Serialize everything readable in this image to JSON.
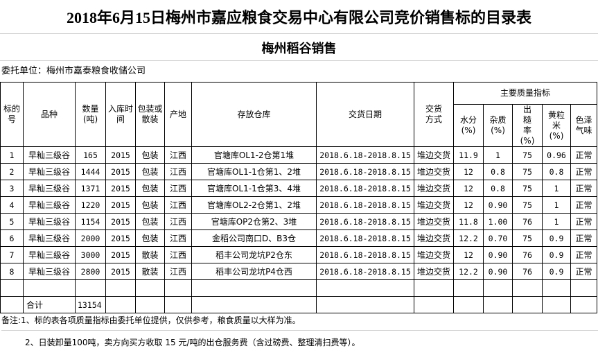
{
  "title": "2018年6月15日梅州市嘉应粮食交易中心有限公司竞价销售标的目录表",
  "subtitle": "梅州稻谷销售",
  "consignor": "委托单位：梅州市嘉泰粮食收储公司",
  "headers": {
    "lot_no": "标的号",
    "variety": "品种",
    "quantity": "数量(吨)",
    "storage_year": "入库时间",
    "packing": "包装或散装",
    "origin": "产地",
    "warehouse": "存放仓库",
    "delivery_date": "交货日期",
    "delivery_method": "交货方式",
    "quality_group": "主要质量指标",
    "moisture": "水分(%)",
    "impurity": "杂质(%)",
    "milling_rate": "出糙率(%)",
    "yellow_rice": "黄粒米(%)",
    "color_odor": "色泽气味"
  },
  "rows": [
    {
      "lot": "1",
      "variety": "早籼三级谷",
      "qty": "165",
      "year": "2015",
      "packing": "包装",
      "origin": "江西",
      "warehouse": "官塘库OL1-2仓第1堆",
      "date": "2018.6.18-2018.8.15",
      "method": "堆边交货",
      "moisture": "11.9",
      "impurity": "1",
      "milling": "75",
      "yellow": "0.96",
      "color": "正常"
    },
    {
      "lot": "2",
      "variety": "早籼三级谷",
      "qty": "1444",
      "year": "2015",
      "packing": "包装",
      "origin": "江西",
      "warehouse": "官塘库OL1-1仓第1、2堆",
      "date": "2018.6.18-2018.8.15",
      "method": "堆边交货",
      "moisture": "12",
      "impurity": "0.8",
      "milling": "75",
      "yellow": "0.8",
      "color": "正常"
    },
    {
      "lot": "3",
      "variety": "早籼三级谷",
      "qty": "1371",
      "year": "2015",
      "packing": "包装",
      "origin": "江西",
      "warehouse": "官塘库OL1-1仓第3、4堆",
      "date": "2018.6.18-2018.8.15",
      "method": "堆边交货",
      "moisture": "12",
      "impurity": "0.8",
      "milling": "75",
      "yellow": "1",
      "color": "正常"
    },
    {
      "lot": "4",
      "variety": "早籼三级谷",
      "qty": "1220",
      "year": "2015",
      "packing": "包装",
      "origin": "江西",
      "warehouse": "官塘库OL2-2仓第1、2堆",
      "date": "2018.6.18-2018.8.15",
      "method": "堆边交货",
      "moisture": "12",
      "impurity": "0.90",
      "milling": "75",
      "yellow": "1",
      "color": "正常"
    },
    {
      "lot": "5",
      "variety": "早籼三级谷",
      "qty": "1154",
      "year": "2015",
      "packing": "包装",
      "origin": "江西",
      "warehouse": "官塘库OP2仓第2、3堆",
      "date": "2018.6.18-2018.8.15",
      "method": "堆边交货",
      "moisture": "11.8",
      "impurity": "1.00",
      "milling": "76",
      "yellow": "1",
      "color": "正常"
    },
    {
      "lot": "6",
      "variety": "早籼三级谷",
      "qty": "2000",
      "year": "2015",
      "packing": "包装",
      "origin": "江西",
      "warehouse": "金稻公司南口D、B3仓",
      "date": "2018.6.18-2018.8.15",
      "method": "堆边交货",
      "moisture": "12.2",
      "impurity": "0.70",
      "milling": "75",
      "yellow": "0.9",
      "color": "正常"
    },
    {
      "lot": "7",
      "variety": "早籼三级谷",
      "qty": "3000",
      "year": "2015",
      "packing": "散装",
      "origin": "江西",
      "warehouse": "稻丰公司龙坑P2仓东",
      "date": "2018.6.18-2018.8.15",
      "method": "堆边交货",
      "moisture": "12",
      "impurity": "0.90",
      "milling": "76",
      "yellow": "0.9",
      "color": "正常"
    },
    {
      "lot": "8",
      "variety": "早籼三级谷",
      "qty": "2800",
      "year": "2015",
      "packing": "散装",
      "origin": "江西",
      "warehouse": "稻丰公司龙坑P4仓西",
      "date": "2018.6.18-2018.8.15",
      "method": "堆边交货",
      "moisture": "12.2",
      "impurity": "0.90",
      "milling": "76",
      "yellow": "0.9",
      "color": "正常"
    }
  ],
  "total": {
    "label": "合计",
    "qty": "13154"
  },
  "notes": [
    "备注:1、标的表各项质量指标由委托单位提供，仅供参考，粮食质量以大样为准。",
    "2、日装卸量100吨，卖方向买方收取 15 元/吨的出仓服务费（含过磅费、整理清扫费等）。"
  ]
}
